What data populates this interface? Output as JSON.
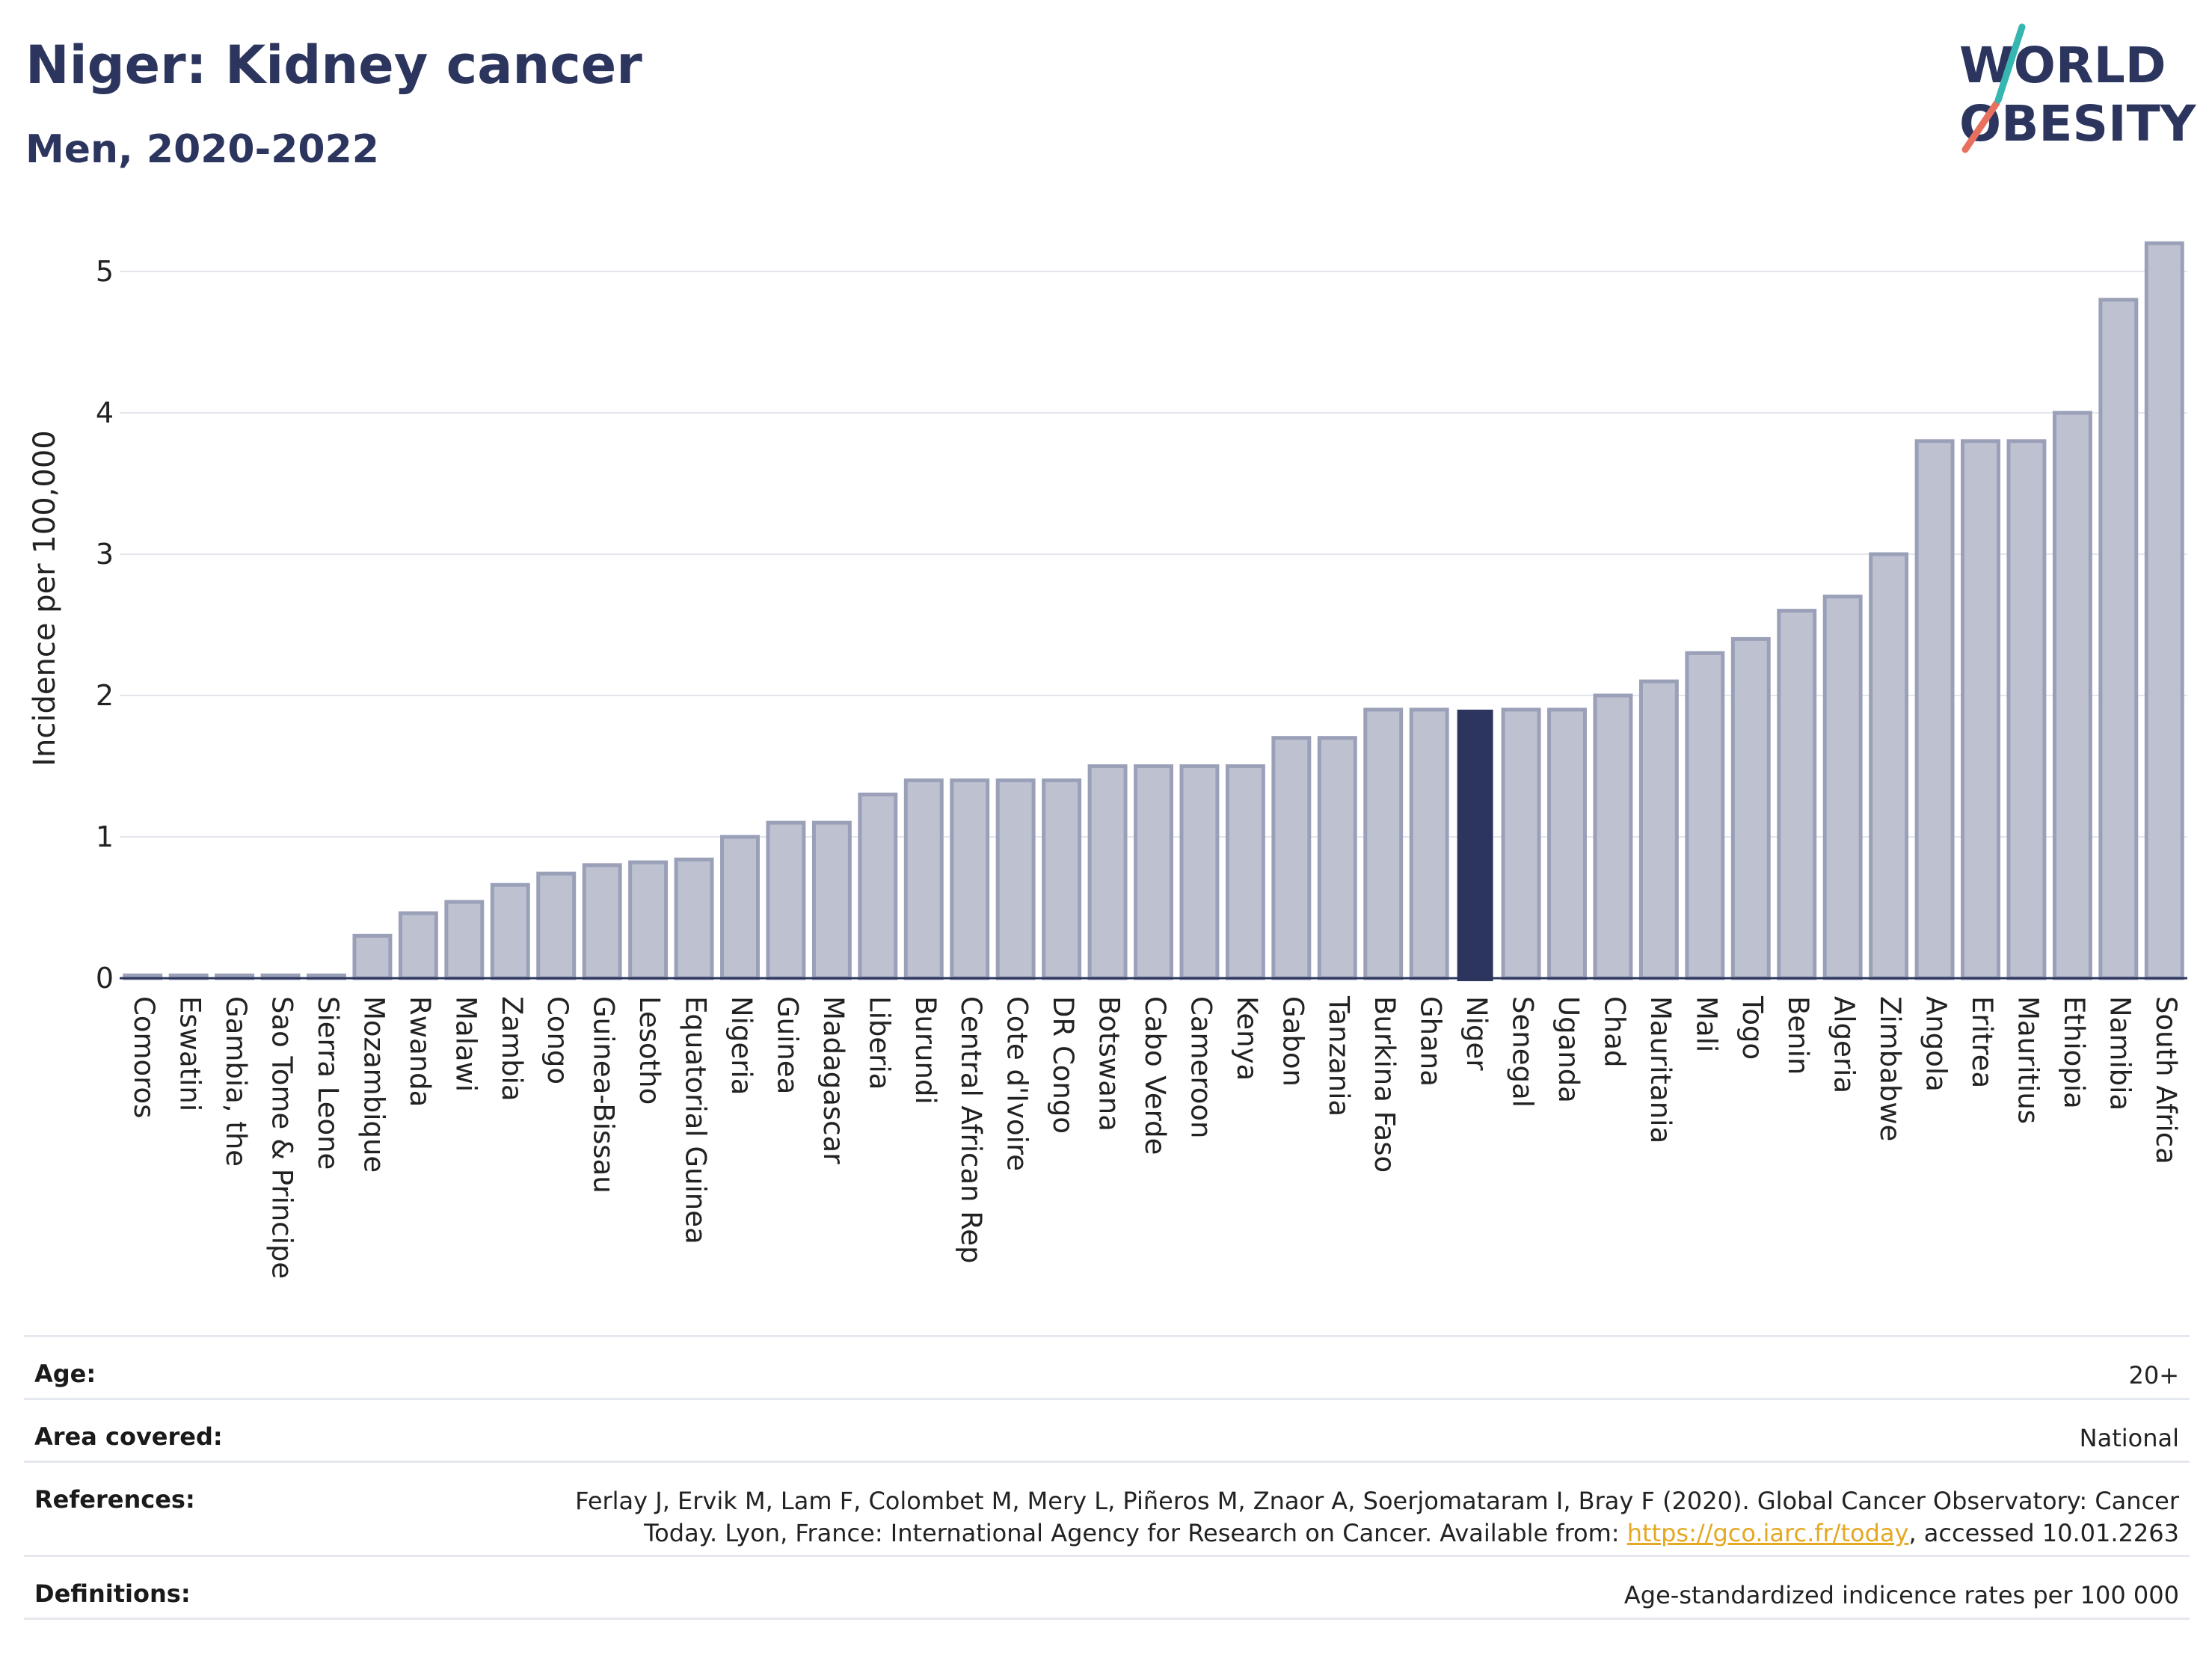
{
  "header": {
    "title": "Niger: Kidney cancer",
    "subtitle": "Men, 2020-2022"
  },
  "logo": {
    "line1": "WORLD",
    "line2": "OBESITY"
  },
  "colors": {
    "bar": "#bdc1d0",
    "bar_stroke": "#9aa0b8",
    "highlight": "#2c355e",
    "grid": "#e4e6ee",
    "axis": "#2c355e"
  },
  "chart_data": {
    "type": "bar",
    "ylabel": "Incidence per 100,000",
    "ylim": [
      0,
      5.4
    ],
    "yticks": [
      0,
      1,
      2,
      3,
      4,
      5
    ],
    "grid": true,
    "highlight": "Niger",
    "categories": [
      "Comoros",
      "Eswatini",
      "Gambia, the",
      "Sao Tome & Principe",
      "Sierra Leone",
      "Mozambique",
      "Rwanda",
      "Malawi",
      "Zambia",
      "Congo",
      "Guinea-Bissau",
      "Lesotho",
      "Equatorial Guinea",
      "Nigeria",
      "Guinea",
      "Madagascar",
      "Liberia",
      "Burundi",
      "Central African Rep",
      "Cote d'Ivoire",
      "DR Congo",
      "Botswana",
      "Cabo Verde",
      "Cameroon",
      "Kenya",
      "Gabon",
      "Tanzania",
      "Burkina Faso",
      "Ghana",
      "Niger",
      "Senegal",
      "Uganda",
      "Chad",
      "Mauritania",
      "Mali",
      "Togo",
      "Benin",
      "Algeria",
      "Zimbabwe",
      "Angola",
      "Eritrea",
      "Mauritius",
      "Ethiopia",
      "Namibia",
      "South Africa"
    ],
    "values": [
      0.02,
      0.02,
      0.02,
      0.02,
      0.02,
      0.3,
      0.46,
      0.54,
      0.66,
      0.74,
      0.8,
      0.82,
      0.84,
      1.0,
      1.1,
      1.1,
      1.3,
      1.4,
      1.4,
      1.4,
      1.4,
      1.5,
      1.5,
      1.5,
      1.5,
      1.7,
      1.7,
      1.9,
      1.9,
      1.9,
      1.9,
      1.9,
      2.0,
      2.1,
      2.3,
      2.4,
      2.6,
      2.7,
      3.0,
      3.8,
      3.8,
      3.8,
      4.0,
      4.8,
      5.2
    ]
  },
  "info": {
    "age_label": "Age:",
    "age_value": "20+",
    "area_label": "Area covered:",
    "area_value": "National",
    "ref_label": "References:",
    "ref_line1": "Ferlay J, Ervik M, Lam F, Colombet M, Mery L, Piñeros M, Znaor A, Soerjomataram I, Bray F (2020). Global Cancer Observatory: Cancer",
    "ref_line2_pre": "Today. Lyon, France: International Agency for Research on Cancer. Available from: ",
    "ref_link": "https://gco.iarc.fr/today",
    "ref_line2_post": ", accessed 10.01.2263",
    "def_label": "Definitions:",
    "def_value": "Age-standardized indicence rates per 100 000"
  }
}
